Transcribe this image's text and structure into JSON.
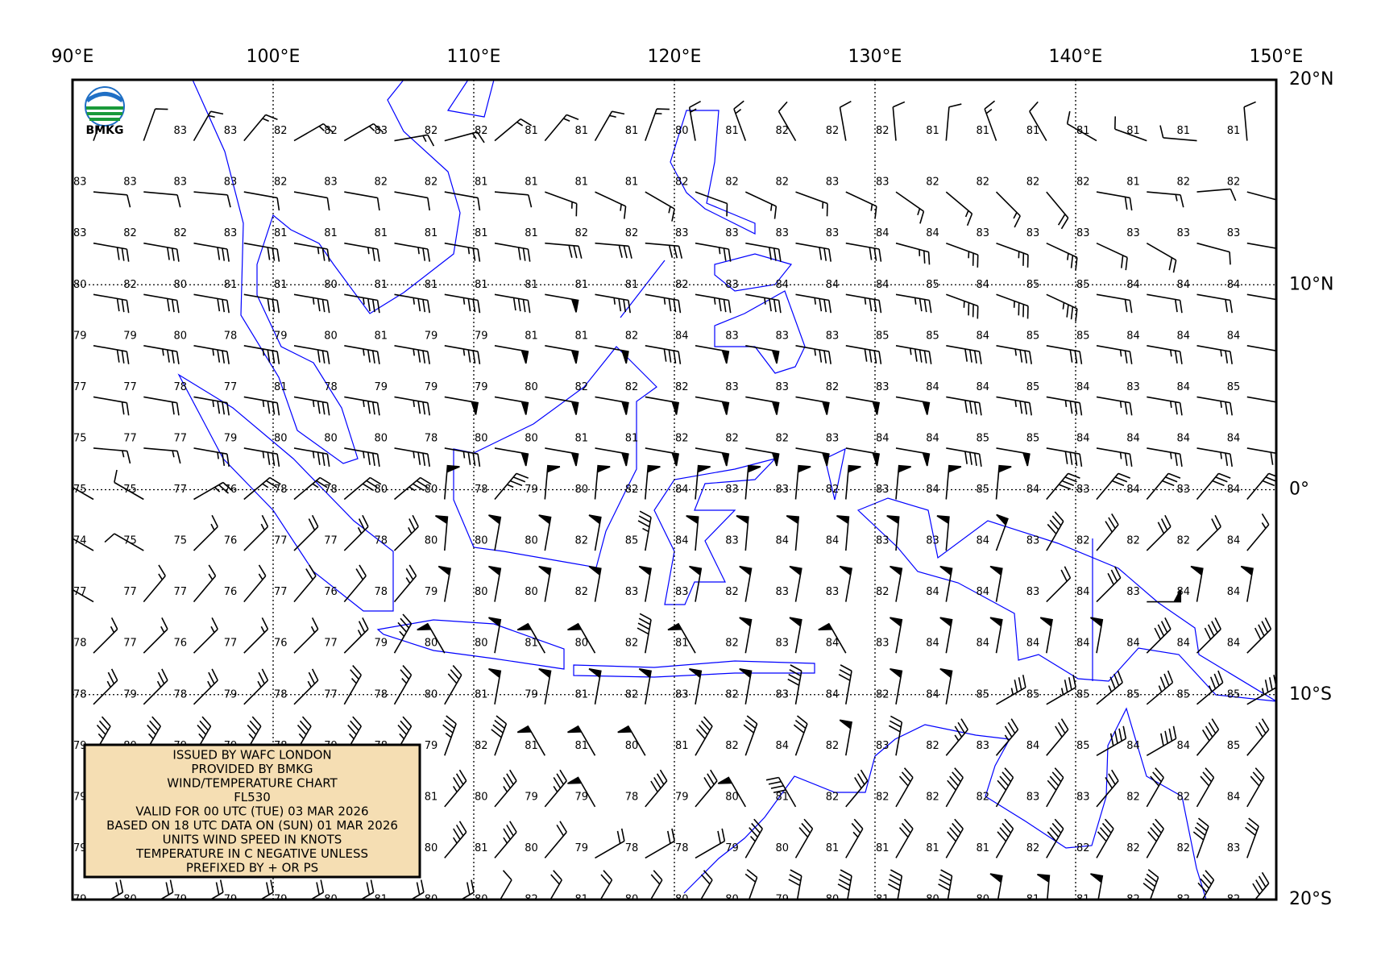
{
  "chart_data": {
    "type": "windmap",
    "logo": "BMKG",
    "notes": [
      "ISSUED BY WAFC LONDON",
      "PROVIDED BY BMKG",
      "WIND/TEMPERATURE CHART",
      "FL530",
      "VALID FOR 00 UTC (TUE) 03 MAR 2026",
      "BASED ON 18 UTC DATA ON (SUN) 01 MAR 2026",
      "UNITS WIND SPEED IN KNOTS",
      "TEMPERATURE IN C NEGATIVE UNLESS",
      "PREFIXED BY + OR PS"
    ],
    "xlim": [
      90,
      150
    ],
    "ylim": [
      -20,
      20
    ],
    "xticks": [
      {
        "value": 90,
        "label": "90°E"
      },
      {
        "value": 100,
        "label": "100°E"
      },
      {
        "value": 110,
        "label": "110°E"
      },
      {
        "value": 120,
        "label": "120°E"
      },
      {
        "value": 130,
        "label": "130°E"
      },
      {
        "value": 140,
        "label": "140°E"
      },
      {
        "value": 150,
        "label": "150°E"
      }
    ],
    "yticks": [
      {
        "value": 20,
        "label": "20°N"
      },
      {
        "value": 10,
        "label": "10°N"
      },
      {
        "value": 0,
        "label": "0°"
      },
      {
        "value": -10,
        "label": "10°S"
      },
      {
        "value": -20,
        "label": "20°S"
      }
    ],
    "grid": true,
    "barb_color": "#000000",
    "x": [
      90,
      92.5,
      95,
      97.5,
      100,
      102.5,
      105,
      107.5,
      110,
      112.5,
      115,
      117.5,
      120,
      122.5,
      125,
      127.5,
      130,
      132.5,
      135,
      137.5,
      140,
      142.5,
      145,
      147.5
    ],
    "y": [
      17.5,
      15,
      12.5,
      10,
      7.5,
      5,
      2.5,
      0,
      -2.5,
      -5,
      -7.5,
      -10,
      -12.5,
      -15,
      -17.5,
      -20
    ],
    "temperature": [
      [
        null,
        null,
        83,
        83,
        82,
        82,
        83,
        82,
        82,
        81,
        81,
        81,
        80,
        81,
        82,
        82,
        82,
        81,
        81,
        81,
        81,
        81,
        81,
        81
      ],
      [
        83,
        83,
        83,
        83,
        82,
        83,
        82,
        82,
        81,
        81,
        81,
        81,
        82,
        82,
        82,
        83,
        83,
        82,
        82,
        82,
        82,
        81,
        82,
        82
      ],
      [
        83,
        82,
        82,
        83,
        81,
        81,
        81,
        81,
        81,
        81,
        82,
        82,
        83,
        83,
        83,
        83,
        84,
        84,
        83,
        83,
        83,
        83,
        83,
        83
      ],
      [
        80,
        82,
        80,
        81,
        81,
        80,
        81,
        81,
        81,
        81,
        81,
        81,
        82,
        83,
        84,
        84,
        84,
        85,
        84,
        85,
        85,
        84,
        84,
        84
      ],
      [
        79,
        79,
        80,
        78,
        79,
        80,
        81,
        79,
        79,
        81,
        81,
        82,
        84,
        83,
        83,
        83,
        85,
        85,
        84,
        85,
        85,
        84,
        84,
        84
      ],
      [
        77,
        77,
        78,
        77,
        81,
        78,
        79,
        79,
        79,
        80,
        82,
        82,
        82,
        83,
        83,
        82,
        83,
        84,
        84,
        85,
        84,
        83,
        84,
        85
      ],
      [
        75,
        77,
        77,
        79,
        80,
        80,
        80,
        78,
        80,
        80,
        81,
        81,
        82,
        82,
        82,
        83,
        84,
        84,
        85,
        85,
        84,
        84,
        84,
        84
      ],
      [
        75,
        75,
        77,
        76,
        78,
        78,
        80,
        80,
        78,
        79,
        80,
        82,
        84,
        83,
        83,
        82,
        83,
        84,
        85,
        84,
        83,
        84,
        83,
        84
      ],
      [
        74,
        75,
        75,
        76,
        77,
        77,
        78,
        80,
        80,
        80,
        82,
        85,
        84,
        83,
        84,
        84,
        83,
        83,
        84,
        83,
        82,
        82,
        82,
        84
      ],
      [
        77,
        77,
        77,
        76,
        77,
        76,
        78,
        79,
        80,
        80,
        82,
        83,
        83,
        82,
        83,
        83,
        82,
        84,
        84,
        83,
        84,
        83,
        84,
        84
      ],
      [
        78,
        77,
        76,
        77,
        76,
        77,
        79,
        80,
        80,
        81,
        80,
        82,
        81,
        82,
        83,
        84,
        83,
        84,
        84,
        84,
        84,
        84,
        84,
        84
      ],
      [
        78,
        79,
        78,
        79,
        78,
        77,
        78,
        80,
        81,
        79,
        81,
        82,
        83,
        82,
        83,
        84,
        82,
        84,
        85,
        85,
        85,
        85,
        85,
        85
      ],
      [
        79,
        80,
        79,
        79,
        78,
        79,
        78,
        79,
        82,
        81,
        81,
        80,
        81,
        82,
        84,
        82,
        83,
        82,
        83,
        84,
        85,
        84,
        84,
        85
      ],
      [
        79,
        null,
        null,
        null,
        null,
        null,
        null,
        81,
        80,
        79,
        79,
        78,
        79,
        80,
        81,
        82,
        82,
        82,
        82,
        83,
        83,
        82,
        82,
        84
      ],
      [
        79,
        null,
        null,
        null,
        null,
        null,
        null,
        80,
        81,
        80,
        79,
        78,
        78,
        79,
        80,
        81,
        81,
        81,
        81,
        82,
        82,
        82,
        82,
        83
      ],
      [
        79,
        80,
        79,
        79,
        79,
        80,
        81,
        80,
        80,
        82,
        81,
        80,
        80,
        80,
        79,
        80,
        81,
        80,
        80,
        81,
        81,
        82,
        82,
        82
      ]
    ],
    "wind_direction": [
      [
        20,
        20,
        30,
        40,
        60,
        60,
        80,
        75,
        50,
        40,
        30,
        20,
        350,
        340,
        330,
        350,
        355,
        5,
        340,
        330,
        300,
        290,
        275,
        355
      ],
      [
        95,
        95,
        95,
        100,
        100,
        100,
        100,
        100,
        95,
        110,
        115,
        120,
        110,
        115,
        110,
        115,
        125,
        130,
        135,
        140,
        100,
        95,
        85,
        105
      ],
      [
        100,
        100,
        100,
        100,
        100,
        100,
        100,
        100,
        100,
        95,
        95,
        95,
        100,
        100,
        100,
        100,
        105,
        110,
        110,
        115,
        115,
        120,
        105,
        100
      ],
      [
        100,
        100,
        100,
        100,
        100,
        100,
        100,
        100,
        100,
        100,
        100,
        100,
        100,
        100,
        100,
        100,
        100,
        110,
        110,
        115,
        100,
        100,
        100,
        100
      ],
      [
        100,
        100,
        100,
        100,
        100,
        100,
        100,
        100,
        100,
        100,
        100,
        100,
        100,
        100,
        100,
        100,
        100,
        100,
        100,
        100,
        100,
        100,
        100,
        100
      ],
      [
        100,
        100,
        100,
        100,
        100,
        100,
        100,
        100,
        100,
        100,
        100,
        100,
        100,
        100,
        100,
        100,
        100,
        100,
        100,
        100,
        100,
        100,
        100,
        100
      ],
      [
        95,
        95,
        100,
        100,
        100,
        100,
        100,
        100,
        100,
        100,
        100,
        100,
        100,
        100,
        100,
        100,
        100,
        100,
        100,
        100,
        100,
        100,
        100,
        100
      ],
      [
        300,
        300,
        60,
        50,
        50,
        50,
        50,
        5,
        40,
        5,
        5,
        5,
        5,
        5,
        5,
        5,
        5,
        5,
        5,
        40,
        40,
        40,
        40,
        40
      ],
      [
        300,
        300,
        45,
        45,
        45,
        45,
        45,
        5,
        10,
        10,
        10,
        10,
        5,
        5,
        5,
        5,
        5,
        5,
        20,
        30,
        40,
        45,
        45,
        40
      ],
      [
        300,
        40,
        40,
        40,
        40,
        40,
        40,
        10,
        10,
        10,
        10,
        10,
        10,
        10,
        10,
        10,
        10,
        10,
        10,
        45,
        45,
        90,
        10,
        10
      ],
      [
        45,
        45,
        45,
        45,
        45,
        45,
        30,
        330,
        10,
        330,
        330,
        10,
        330,
        10,
        10,
        330,
        10,
        10,
        10,
        10,
        10,
        45,
        45,
        45
      ],
      [
        45,
        45,
        45,
        45,
        45,
        30,
        30,
        30,
        10,
        10,
        10,
        10,
        10,
        10,
        10,
        10,
        10,
        10,
        60,
        60,
        50,
        50,
        50,
        60
      ],
      [
        30,
        30,
        30,
        30,
        30,
        30,
        30,
        20,
        20,
        330,
        330,
        330,
        30,
        20,
        20,
        10,
        10,
        40,
        40,
        40,
        60,
        60,
        40,
        40
      ],
      [
        40,
        45,
        45,
        45,
        45,
        45,
        40,
        40,
        40,
        40,
        330,
        40,
        40,
        330,
        330,
        40,
        30,
        30,
        30,
        30,
        40,
        30,
        30,
        30
      ],
      [
        40,
        40,
        40,
        40,
        40,
        40,
        40,
        40,
        40,
        40,
        60,
        60,
        60,
        30,
        30,
        30,
        30,
        30,
        30,
        30,
        30,
        30,
        20,
        20
      ],
      [
        60,
        60,
        60,
        60,
        60,
        60,
        60,
        60,
        30,
        30,
        30,
        30,
        30,
        20,
        10,
        10,
        10,
        10,
        10,
        5,
        10,
        20,
        30,
        40
      ]
    ],
    "wind_speed": [
      [
        10,
        10,
        15,
        15,
        15,
        15,
        15,
        15,
        15,
        15,
        15,
        15,
        15,
        15,
        10,
        10,
        10,
        10,
        15,
        10,
        10,
        10,
        10,
        10
      ],
      [
        10,
        10,
        10,
        10,
        10,
        10,
        10,
        10,
        10,
        15,
        15,
        15,
        10,
        15,
        15,
        15,
        15,
        15,
        15,
        20,
        20,
        15,
        10,
        10
      ],
      [
        30,
        30,
        30,
        30,
        25,
        25,
        25,
        25,
        30,
        30,
        30,
        30,
        25,
        30,
        30,
        30,
        25,
        25,
        25,
        25,
        20,
        20,
        10,
        10
      ],
      [
        30,
        30,
        30,
        30,
        35,
        35,
        35,
        35,
        40,
        50,
        35,
        35,
        35,
        35,
        35,
        35,
        35,
        35,
        35,
        35,
        20,
        20,
        20,
        20
      ],
      [
        30,
        35,
        35,
        35,
        30,
        35,
        35,
        35,
        50,
        50,
        50,
        40,
        50,
        50,
        35,
        40,
        45,
        40,
        35,
        30,
        25,
        25,
        25,
        20
      ],
      [
        20,
        20,
        35,
        35,
        35,
        35,
        35,
        50,
        50,
        50,
        50,
        50,
        50,
        50,
        50,
        50,
        50,
        40,
        35,
        35,
        25,
        25,
        25,
        20
      ],
      [
        15,
        15,
        25,
        35,
        35,
        35,
        35,
        35,
        50,
        50,
        50,
        50,
        50,
        50,
        50,
        50,
        50,
        40,
        50,
        40,
        25,
        25,
        25,
        30
      ],
      [
        10,
        10,
        25,
        25,
        25,
        30,
        35,
        50,
        35,
        50,
        50,
        50,
        50,
        50,
        50,
        50,
        50,
        50,
        50,
        40,
        30,
        30,
        30,
        30
      ],
      [
        10,
        10,
        15,
        15,
        20,
        25,
        25,
        50,
        50,
        50,
        50,
        35,
        50,
        50,
        50,
        50,
        50,
        50,
        50,
        40,
        30,
        30,
        20,
        15
      ],
      [
        15,
        15,
        15,
        15,
        20,
        20,
        25,
        50,
        50,
        50,
        50,
        50,
        50,
        50,
        50,
        50,
        50,
        50,
        50,
        20,
        30,
        50,
        50,
        50
      ],
      [
        15,
        15,
        15,
        15,
        15,
        25,
        35,
        50,
        50,
        50,
        50,
        40,
        50,
        50,
        50,
        50,
        50,
        50,
        50,
        50,
        50,
        40,
        40,
        40
      ],
      [
        25,
        25,
        25,
        25,
        25,
        25,
        25,
        30,
        50,
        50,
        50,
        50,
        50,
        50,
        40,
        30,
        50,
        50,
        35,
        35,
        35,
        35,
        35,
        35
      ],
      [
        35,
        35,
        35,
        35,
        35,
        35,
        35,
        35,
        40,
        50,
        50,
        50,
        40,
        30,
        30,
        50,
        30,
        35,
        35,
        30,
        40,
        40,
        40,
        30
      ],
      [
        35,
        35,
        35,
        35,
        35,
        35,
        35,
        35,
        35,
        35,
        50,
        40,
        30,
        50,
        40,
        30,
        30,
        40,
        40,
        40,
        30,
        30,
        30,
        30
      ],
      [
        35,
        35,
        35,
        35,
        35,
        35,
        35,
        35,
        35,
        20,
        20,
        20,
        20,
        35,
        30,
        25,
        30,
        40,
        40,
        40,
        40,
        40,
        40,
        30
      ],
      [
        20,
        20,
        20,
        20,
        20,
        20,
        20,
        20,
        10,
        20,
        20,
        20,
        20,
        20,
        30,
        40,
        40,
        40,
        50,
        50,
        50,
        40,
        40,
        40
      ]
    ]
  }
}
